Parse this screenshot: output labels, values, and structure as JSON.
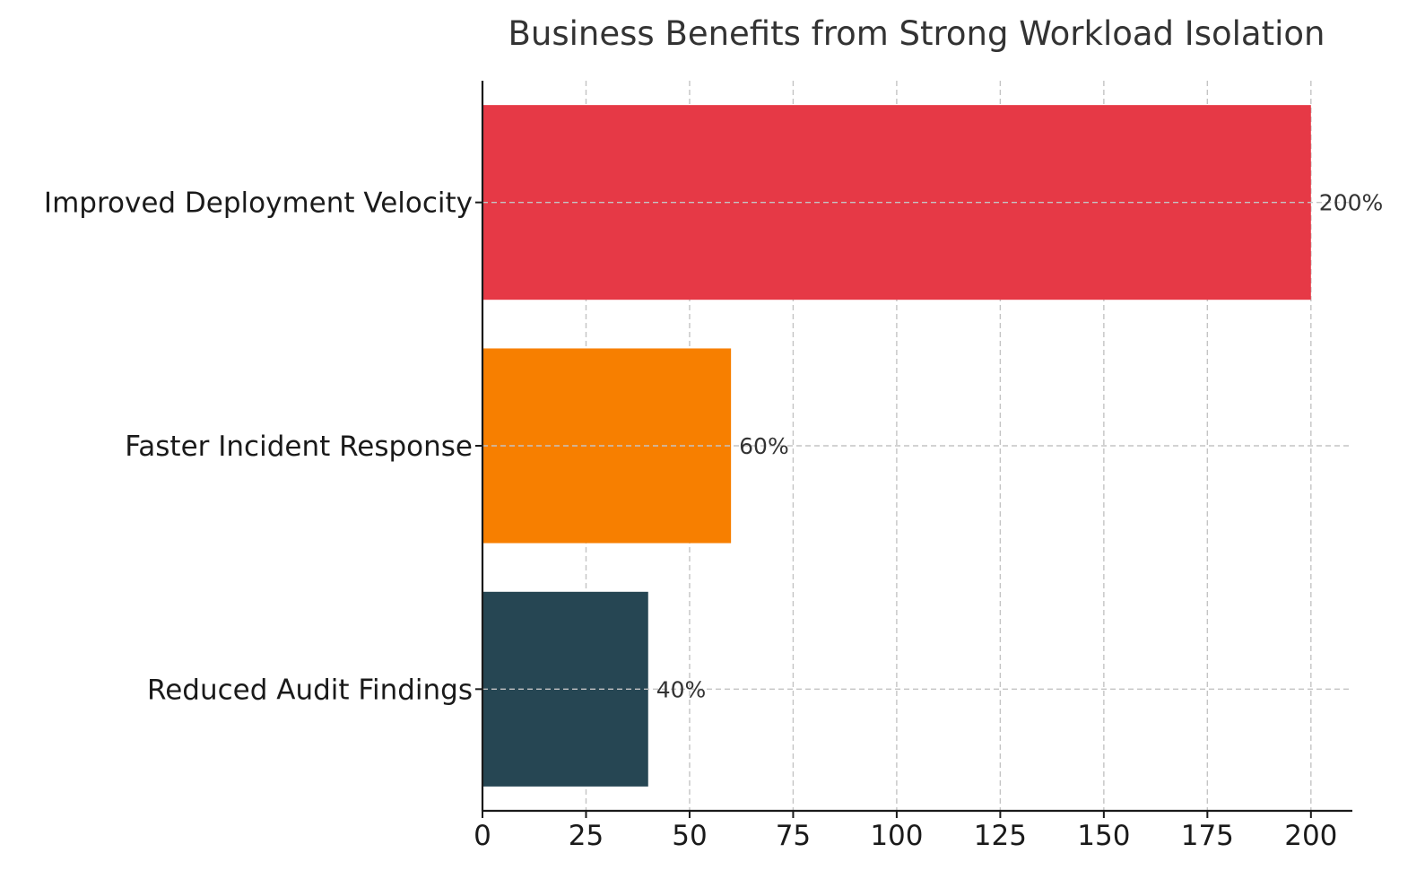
{
  "chart_data": {
    "type": "bar",
    "orientation": "horizontal",
    "title": "Business Benefits from Strong Workload Isolation",
    "xlabel": "",
    "ylabel": "",
    "xlim": [
      0,
      210
    ],
    "xticks": [
      0,
      25,
      50,
      75,
      100,
      125,
      150,
      175,
      200
    ],
    "grid": true,
    "categories": [
      "Improved Deployment Velocity",
      "Faster Incident Response",
      "Reduced Audit Findings"
    ],
    "values": [
      200,
      60,
      40
    ],
    "value_labels": [
      "200%",
      "60%",
      "40%"
    ],
    "colors": [
      "#e63946",
      "#f77f00",
      "#264653"
    ]
  }
}
